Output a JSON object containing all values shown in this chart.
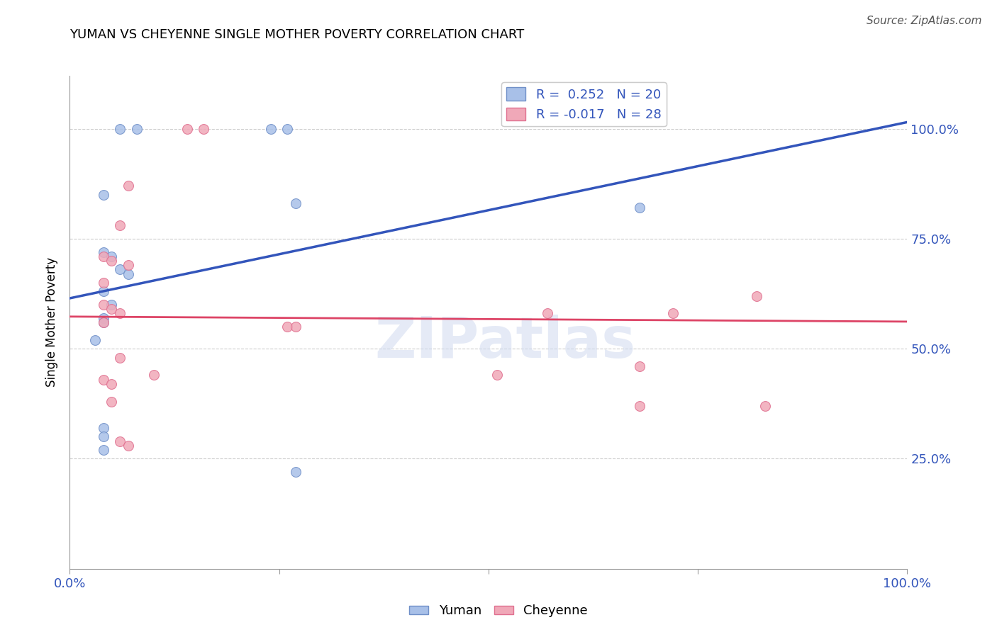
{
  "title": "YUMAN VS CHEYENNE SINGLE MOTHER POVERTY CORRELATION CHART",
  "source": "Source: ZipAtlas.com",
  "ylabel": "Single Mother Poverty",
  "blue_R": 0.252,
  "blue_N": 20,
  "pink_R": -0.017,
  "pink_N": 28,
  "blue_color": "#a8c0e8",
  "pink_color": "#f0a8b8",
  "blue_edge": "#7090c8",
  "pink_edge": "#e07090",
  "trend_blue": "#3355bb",
  "trend_pink": "#dd4466",
  "watermark": "ZIPatlas",
  "blue_points": [
    [
      0.06,
      1.0
    ],
    [
      0.08,
      1.0
    ],
    [
      0.24,
      1.0
    ],
    [
      0.26,
      1.0
    ],
    [
      0.04,
      0.85
    ],
    [
      0.27,
      0.83
    ],
    [
      0.68,
      0.82
    ],
    [
      0.04,
      0.72
    ],
    [
      0.05,
      0.71
    ],
    [
      0.06,
      0.68
    ],
    [
      0.07,
      0.67
    ],
    [
      0.04,
      0.63
    ],
    [
      0.05,
      0.6
    ],
    [
      0.04,
      0.57
    ],
    [
      0.04,
      0.56
    ],
    [
      0.03,
      0.52
    ],
    [
      0.04,
      0.32
    ],
    [
      0.27,
      0.22
    ],
    [
      0.04,
      0.3
    ],
    [
      0.04,
      0.27
    ]
  ],
  "pink_points": [
    [
      0.14,
      1.0
    ],
    [
      0.16,
      1.0
    ],
    [
      0.07,
      0.87
    ],
    [
      0.06,
      0.78
    ],
    [
      0.04,
      0.71
    ],
    [
      0.05,
      0.7
    ],
    [
      0.07,
      0.69
    ],
    [
      0.04,
      0.65
    ],
    [
      0.04,
      0.6
    ],
    [
      0.05,
      0.59
    ],
    [
      0.06,
      0.58
    ],
    [
      0.04,
      0.56
    ],
    [
      0.26,
      0.55
    ],
    [
      0.27,
      0.55
    ],
    [
      0.57,
      0.58
    ],
    [
      0.72,
      0.58
    ],
    [
      0.82,
      0.62
    ],
    [
      0.68,
      0.46
    ],
    [
      0.51,
      0.44
    ],
    [
      0.06,
      0.48
    ],
    [
      0.1,
      0.44
    ],
    [
      0.04,
      0.43
    ],
    [
      0.05,
      0.42
    ],
    [
      0.05,
      0.38
    ],
    [
      0.06,
      0.29
    ],
    [
      0.07,
      0.28
    ],
    [
      0.83,
      0.37
    ],
    [
      0.68,
      0.37
    ]
  ]
}
